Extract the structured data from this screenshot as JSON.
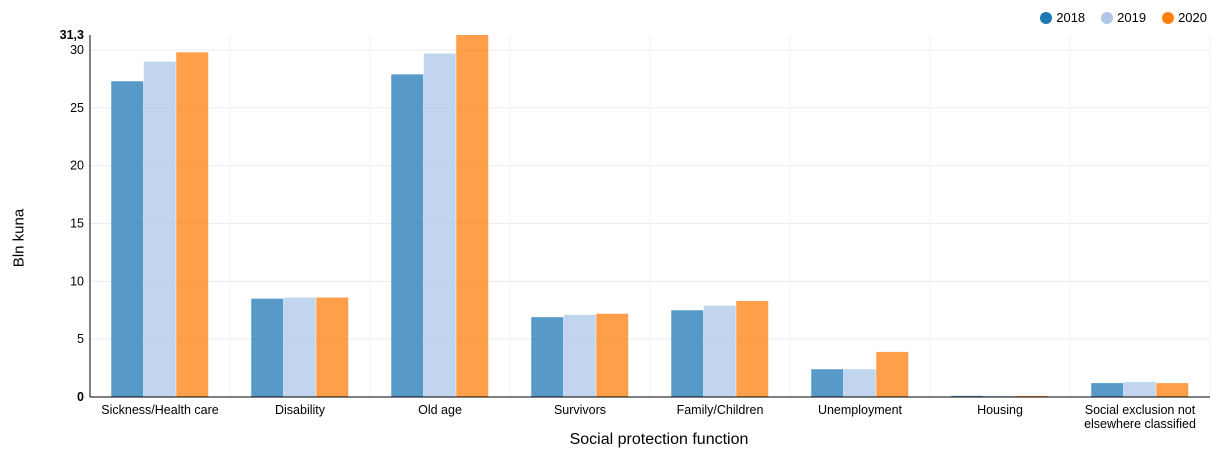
{
  "chart_data": {
    "type": "bar",
    "xlabel": "Social protection function",
    "ylabel": "Bln kuna",
    "ylim": [
      0,
      31.3
    ],
    "ymax_label": "31,3",
    "yticks": [
      0,
      5,
      10,
      15,
      20,
      25,
      30
    ],
    "grid": true,
    "legend_position": "top-right",
    "categories": [
      "Sickness/Health care",
      "Disability",
      "Old age",
      "Survivors",
      "Family/Children",
      "Unemployment",
      "Housing",
      "Social exclusion not elsewhere classified"
    ],
    "series": [
      {
        "name": "2018",
        "color": "#1f77b4",
        "values": [
          27.3,
          8.5,
          27.9,
          6.9,
          7.5,
          2.4,
          0.1,
          1.2
        ]
      },
      {
        "name": "2019",
        "color": "#aec7e8",
        "values": [
          29.0,
          8.6,
          29.7,
          7.1,
          7.9,
          2.4,
          0.1,
          1.3
        ]
      },
      {
        "name": "2020",
        "color": "#ff7f0e",
        "values": [
          29.8,
          8.6,
          31.3,
          7.2,
          8.3,
          3.9,
          0.1,
          1.2
        ]
      }
    ]
  }
}
